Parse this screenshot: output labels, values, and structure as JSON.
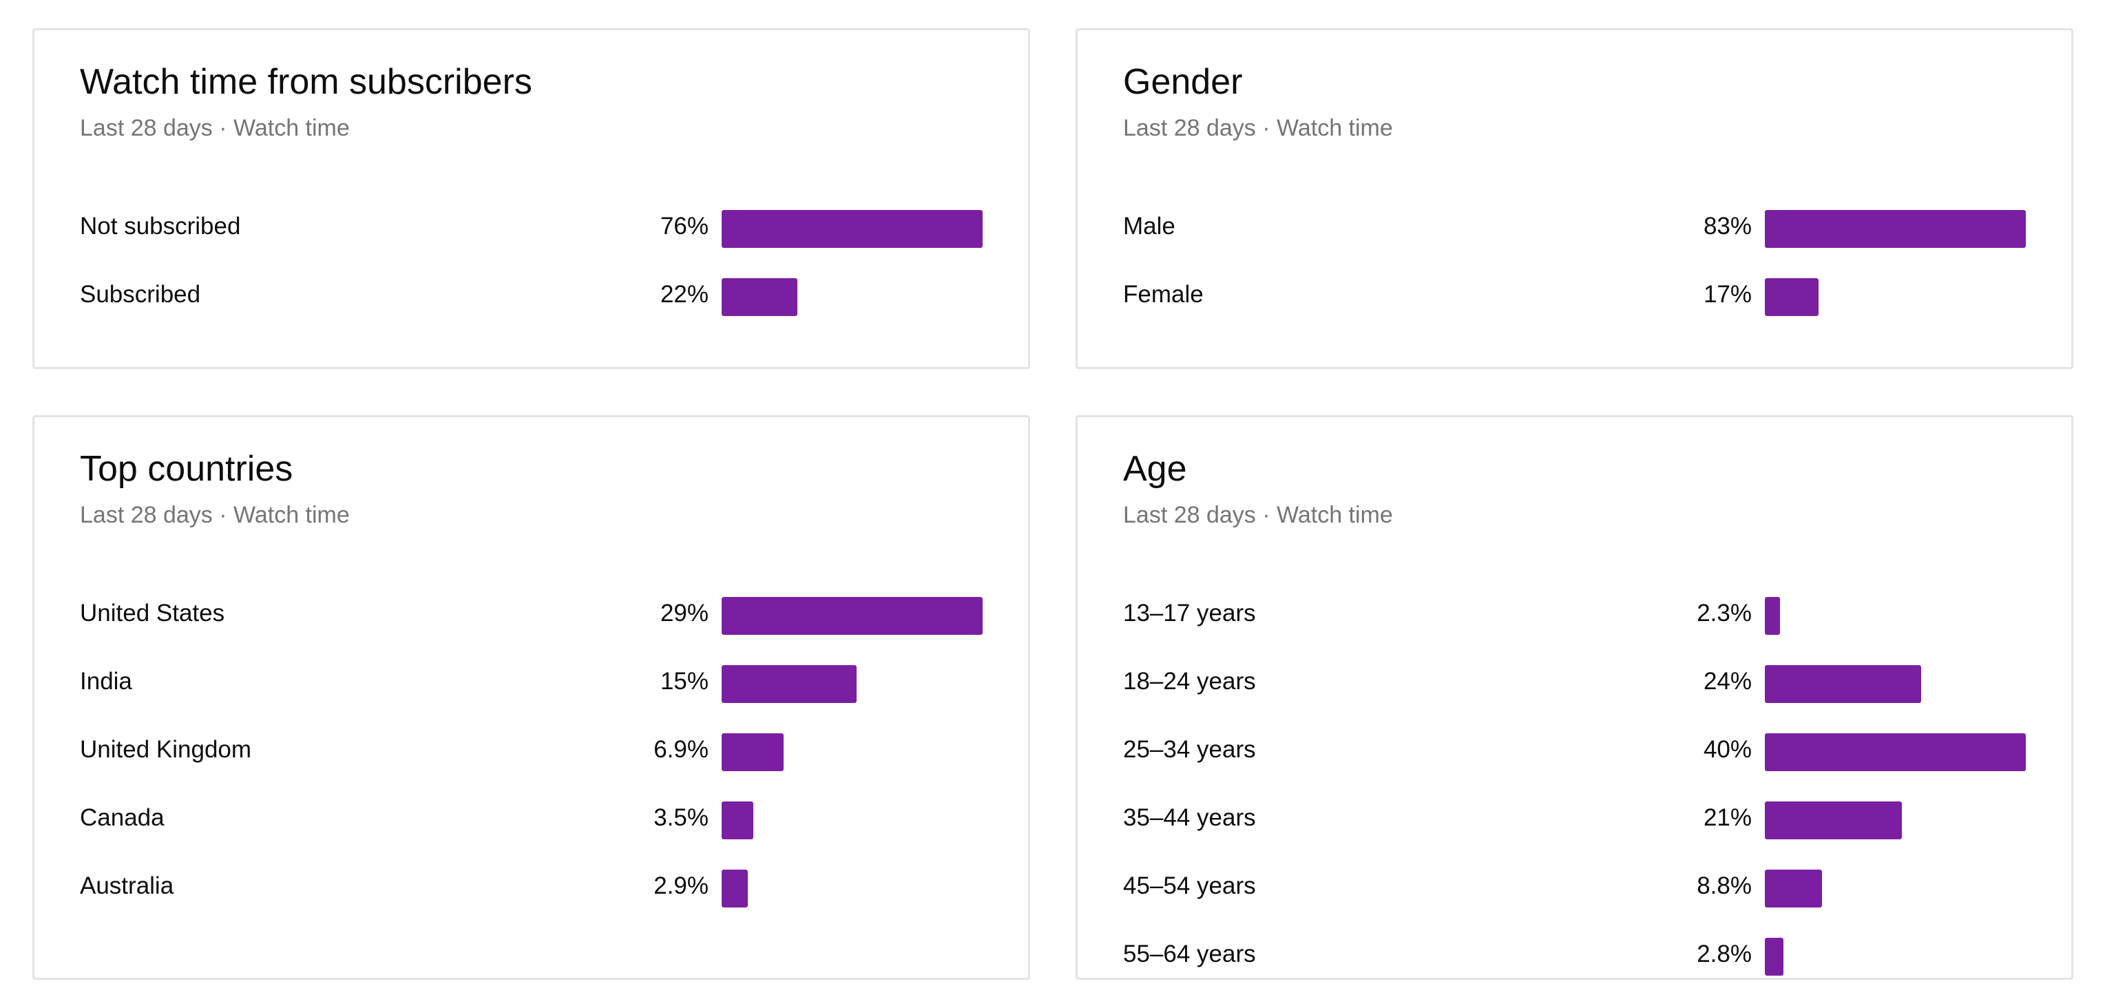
{
  "accent_color": "#7b1fa2",
  "cards": {
    "subscribers": {
      "title": "Watch time from subscribers",
      "subtitle": "Last 28 days · Watch time",
      "rows": [
        {
          "label": "Not subscribed",
          "value": "76%",
          "fraction": 1.0
        },
        {
          "label": "Subscribed",
          "value": "22%",
          "fraction": 0.289
        }
      ]
    },
    "gender": {
      "title": "Gender",
      "subtitle": "Last 28 days · Watch time",
      "rows": [
        {
          "label": "Male",
          "value": "83%",
          "fraction": 1.0
        },
        {
          "label": "Female",
          "value": "17%",
          "fraction": 0.205
        }
      ]
    },
    "countries": {
      "title": "Top countries",
      "subtitle": "Last 28 days · Watch time",
      "rows": [
        {
          "label": "United States",
          "value": "29%",
          "fraction": 1.0
        },
        {
          "label": "India",
          "value": "15%",
          "fraction": 0.517
        },
        {
          "label": "United Kingdom",
          "value": "6.9%",
          "fraction": 0.238
        },
        {
          "label": "Canada",
          "value": "3.5%",
          "fraction": 0.121
        },
        {
          "label": "Australia",
          "value": "2.9%",
          "fraction": 0.1
        }
      ]
    },
    "age": {
      "title": "Age",
      "subtitle": "Last 28 days · Watch time",
      "rows": [
        {
          "label": "13–17 years",
          "value": "2.3%",
          "fraction": 0.058
        },
        {
          "label": "18–24 years",
          "value": "24%",
          "fraction": 0.6
        },
        {
          "label": "25–34 years",
          "value": "40%",
          "fraction": 1.0
        },
        {
          "label": "35–44 years",
          "value": "21%",
          "fraction": 0.525
        },
        {
          "label": "45–54 years",
          "value": "8.8%",
          "fraction": 0.22
        },
        {
          "label": "55–64 years",
          "value": "2.8%",
          "fraction": 0.07
        }
      ]
    }
  }
}
